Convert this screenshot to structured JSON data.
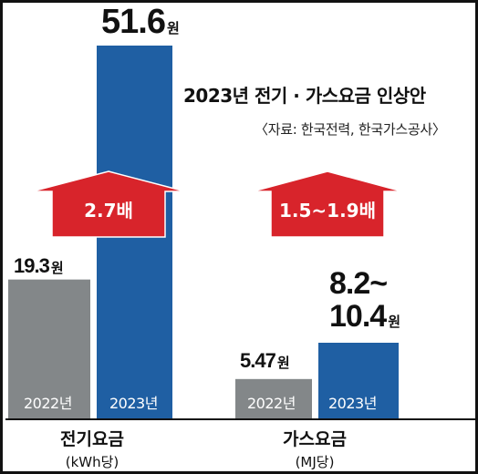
{
  "title": "2023년 전기 · 가스요금 인상안",
  "source": "〈자료: 한국전력, 한국가스공사〉",
  "colors": {
    "bar_2022": "#838789",
    "bar_2023": "#1f5fa3",
    "arrow": "#d8242b",
    "axis": "#111111"
  },
  "chart_data": {
    "type": "bar",
    "title": "2023년 전기 · 가스요금 인상안",
    "groups": [
      {
        "category": "전기요금",
        "unit": "(kWh당)",
        "multiplier_label": "2.7배",
        "bars": [
          {
            "year": "2022년",
            "value": 19.3,
            "value_label": "19.3",
            "unit_label": "원"
          },
          {
            "year": "2023년",
            "value": 51.6,
            "value_label": "51.6",
            "unit_label": "원"
          }
        ]
      },
      {
        "category": "가스요금",
        "unit": "(MJ당)",
        "multiplier_label": "1.5~1.9배",
        "bars": [
          {
            "year": "2022년",
            "value": 5.47,
            "value_label": "5.47",
            "unit_label": "원"
          },
          {
            "year": "2023년",
            "value": 10.4,
            "value_min": 8.2,
            "value_label_line1": "8.2~",
            "value_label_line2": "10.4",
            "unit_label": "원"
          }
        ]
      }
    ]
  }
}
